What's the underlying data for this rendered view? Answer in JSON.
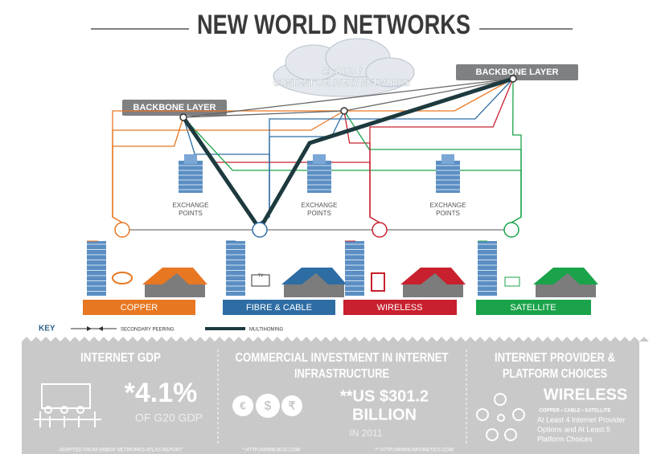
{
  "header": {
    "title": "NEW WORLD NETWORKS"
  },
  "cloud": {
    "lines": [
      "CLOUD /",
      "CONTENT DELIVERY NETWORKS"
    ]
  },
  "backbones": [
    {
      "label": "BACKBONE LAYER"
    },
    {
      "label": "BACKBONE LAYER"
    }
  ],
  "exchanges": [
    {
      "lines": [
        "EXCHANGE",
        "POINTS"
      ]
    },
    {
      "lines": [
        "EXCHANGE",
        "POINTS"
      ]
    },
    {
      "lines": [
        "EXCHANGE",
        "POINTS"
      ]
    }
  ],
  "tv_label": "TV",
  "access": [
    {
      "label": "COPPER"
    },
    {
      "label": "FIBRE & CABLE"
    },
    {
      "label": "WIRELESS"
    },
    {
      "label": "SATELLITE"
    }
  ],
  "key": {
    "title": "KEY",
    "items": [
      "SECONDARY PEERING",
      "MULTIHOMING"
    ]
  },
  "panels": [
    {
      "title": [
        "INTERNET GDP"
      ],
      "figure": "*4.1%",
      "subtitle": "OF G20 GDP",
      "source": "ADAPTED FROM ARBOR NETWORKS ATLAS REPORT"
    },
    {
      "title": [
        "COMMERCIAL INVESTMENT IN INTERNET",
        "INFRASTRUCTURE"
      ],
      "figure": [
        "**US $301.2",
        "BILLION"
      ],
      "subtitle": "IN 2011",
      "currency": [
        "€",
        "$",
        "₹"
      ],
      "sources": [
        "* HTTP://WWW.BCG.COM",
        "** HTTP://WWW.INFONETICS.COM"
      ]
    },
    {
      "title": [
        "INTERNET PROVIDER &",
        "PLATFORM CHOICES"
      ],
      "figure": "WIRELESS",
      "subtitle": "COPPER • CABLE • SATELLITE",
      "note": [
        "At Least 4 Internet Provider",
        "Options and At Least 5",
        "Platform Choices"
      ]
    }
  ]
}
